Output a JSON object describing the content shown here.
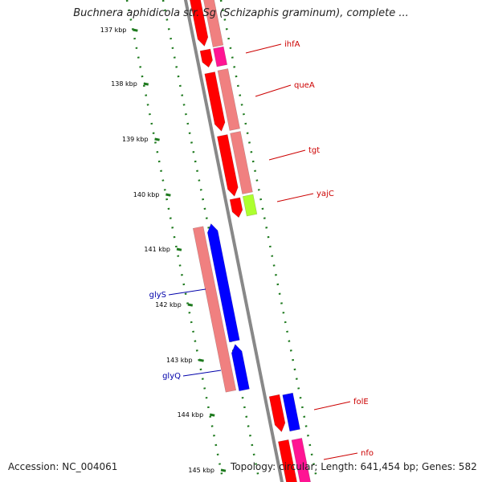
{
  "title": "Buchnera aphidicola str. Sg (Schizaphis graminum), complete ...",
  "accession": "Accession: NC_004061",
  "summary": "Topology: circular; Length: 641,454 bp; Genes: 582",
  "ticks": [
    "137 kbp",
    "138 kbp",
    "139 kbp",
    "140 kbp",
    "141 kbp",
    "142 kbp",
    "143 kbp",
    "144 kbp",
    "145 kbp"
  ],
  "genes": [
    {
      "name": "ihfA",
      "strand": "+",
      "color": "#ff1493"
    },
    {
      "name": "queA",
      "strand": "+",
      "color": "#f08080"
    },
    {
      "name": "tgt",
      "strand": "+",
      "color": "#f08080"
    },
    {
      "name": "yajC",
      "strand": "+",
      "color": "#adff2f"
    },
    {
      "name": "glyS",
      "strand": "-",
      "color": "#0000ff"
    },
    {
      "name": "glyQ",
      "strand": "-",
      "color": "#0000ff"
    },
    {
      "name": "folE",
      "strand": "+",
      "color": "#0000ff"
    },
    {
      "name": "nfo",
      "strand": "+",
      "color": "#ff1493"
    }
  ],
  "colors": {
    "forward_label": "#cc0000",
    "reverse_label": "#0000aa",
    "backbone": "#888888",
    "tick": "#1e7a1e",
    "cds_forward": "#ff0000",
    "cds_reverse": "#0000ff",
    "gene_bar": "#f08080"
  }
}
